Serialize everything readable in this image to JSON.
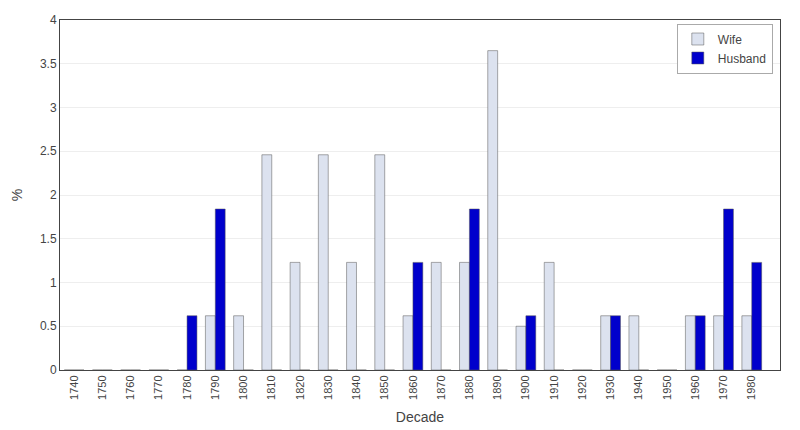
{
  "chart_data": {
    "type": "bar",
    "xlabel": "Decade",
    "ylabel": "%",
    "x": [
      1740,
      1750,
      1760,
      1770,
      1780,
      1790,
      1800,
      1810,
      1820,
      1830,
      1840,
      1850,
      1860,
      1870,
      1880,
      1890,
      1900,
      1910,
      1920,
      1930,
      1940,
      1950,
      1960,
      1970,
      1980
    ],
    "series": [
      {
        "name": "Wife",
        "color": "#dce2ef",
        "values": [
          0,
          0,
          0,
          0,
          0,
          0.62,
          0.62,
          2.46,
          1.23,
          2.46,
          1.23,
          2.46,
          0.62,
          1.23,
          1.23,
          3.65,
          0.5,
          1.23,
          0,
          0.62,
          0.62,
          0,
          0.62,
          0.62,
          0.62
        ]
      },
      {
        "name": "Husband",
        "color": "#0000cc",
        "values": [
          0,
          0,
          0,
          0,
          0.62,
          1.84,
          0,
          0,
          0,
          0,
          0,
          0,
          1.23,
          0,
          1.84,
          0,
          0.62,
          0,
          0,
          0.62,
          0,
          0,
          0.62,
          1.84,
          1.23
        ]
      }
    ],
    "xlim": [
      1735,
      1990
    ],
    "xticks": [
      1740,
      1750,
      1760,
      1770,
      1780,
      1790,
      1800,
      1810,
      1820,
      1830,
      1840,
      1850,
      1860,
      1870,
      1880,
      1890,
      1900,
      1910,
      1920,
      1930,
      1940,
      1950,
      1960,
      1970,
      1980
    ],
    "ylim": [
      0,
      4
    ],
    "yticks": [
      0,
      0.5,
      1,
      1.5,
      2,
      2.5,
      3,
      3.5,
      4
    ],
    "grid": true,
    "legend": "upper right"
  }
}
